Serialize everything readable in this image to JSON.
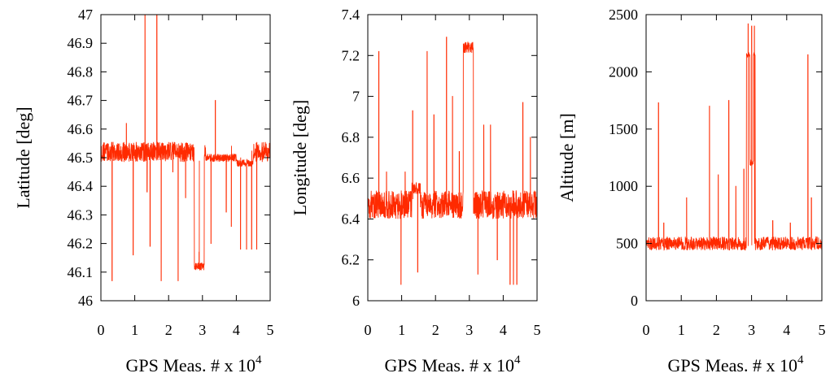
{
  "colors": {
    "series": "#ff2a00",
    "axes": "#000000",
    "background": "#ffffff"
  },
  "chart_data": [
    {
      "type": "line",
      "xlabel": "GPS Meas. # x 10",
      "xlabel_exp": "4",
      "ylabel": "Latitude [deg]",
      "xlim": [
        0,
        5
      ],
      "ylim": [
        46.0,
        47.0
      ],
      "xticks": [
        "0",
        "1",
        "2",
        "3",
        "4",
        "5"
      ],
      "yticks": [
        "46",
        "46.1",
        "46.2",
        "46.3",
        "46.4",
        "46.5",
        "46.6",
        "46.7",
        "46.8",
        "46.9",
        "47"
      ],
      "grid": false,
      "legend": "none",
      "series": [
        {
          "base": 46.52,
          "noise": 0.035,
          "segments": [
            {
              "x": [
                0.02,
                0.06
              ],
              "y": 46.5
            },
            {
              "x": [
                2.76,
                3.05
              ],
              "y": 46.12
            },
            {
              "x": [
                3.1,
                4.0
              ],
              "y": 46.5
            },
            {
              "x": [
                4.0,
                4.5
              ],
              "y": 46.48
            }
          ],
          "spikes": [
            [
              0.33,
              46.07
            ],
            [
              0.95,
              46.16
            ],
            [
              1.3,
              47.0
            ],
            [
              1.36,
              46.38
            ],
            [
              1.45,
              46.19
            ],
            [
              1.65,
              47.0
            ],
            [
              1.78,
              46.07
            ],
            [
              2.12,
              46.45
            ],
            [
              2.28,
              46.07
            ],
            [
              2.5,
              46.36
            ],
            [
              3.38,
              46.7
            ],
            [
              3.25,
              46.2
            ],
            [
              3.7,
              46.31
            ],
            [
              3.85,
              46.26
            ],
            [
              4.12,
              46.18
            ],
            [
              4.3,
              46.18
            ],
            [
              4.45,
              46.18
            ],
            [
              4.6,
              46.18
            ],
            [
              0.75,
              46.62
            ],
            [
              2.9,
              46.17
            ]
          ]
        }
      ]
    },
    {
      "type": "line",
      "xlabel": "GPS Meas. # x 10",
      "xlabel_exp": "4",
      "ylabel": "Longitude [deg]",
      "xlim": [
        0,
        5
      ],
      "ylim": [
        6.0,
        7.4
      ],
      "xticks": [
        "0",
        "1",
        "2",
        "3",
        "4",
        "5"
      ],
      "yticks": [
        "6",
        "6.2",
        "6.4",
        "6.6",
        "6.8",
        "7",
        "7.2",
        "7.4"
      ],
      "grid": false,
      "legend": "none",
      "series": [
        {
          "base": 6.47,
          "noise": 0.07,
          "segments": [
            {
              "x": [
                2.82,
                3.12
              ],
              "y": 7.24
            },
            {
              "x": [
                1.3,
                1.55
              ],
              "y": 6.55
            }
          ],
          "spikes": [
            [
              0.32,
              7.22
            ],
            [
              0.98,
              6.08
            ],
            [
              1.32,
              6.93
            ],
            [
              1.47,
              6.14
            ],
            [
              1.75,
              7.22
            ],
            [
              1.95,
              6.91
            ],
            [
              2.32,
              7.29
            ],
            [
              2.5,
              7.0
            ],
            [
              2.7,
              6.73
            ],
            [
              3.25,
              6.13
            ],
            [
              3.42,
              6.86
            ],
            [
              3.62,
              6.86
            ],
            [
              3.82,
              6.2
            ],
            [
              4.2,
              6.08
            ],
            [
              4.3,
              6.08
            ],
            [
              4.4,
              6.08
            ],
            [
              4.58,
              6.97
            ],
            [
              4.8,
              6.8
            ],
            [
              1.1,
              6.63
            ],
            [
              0.55,
              6.63
            ]
          ]
        }
      ]
    },
    {
      "type": "line",
      "xlabel": "GPS Meas. # x 10",
      "xlabel_exp": "4",
      "ylabel": "Altitude [m]",
      "xlim": [
        0,
        5
      ],
      "ylim": [
        0,
        2500
      ],
      "xticks": [
        "0",
        "1",
        "2",
        "3",
        "4",
        "5"
      ],
      "yticks": [
        "0",
        "500",
        "1000",
        "1500",
        "2000",
        "2500"
      ],
      "grid": false,
      "legend": "none",
      "series": [
        {
          "base": 500,
          "noise": 60,
          "segments": [
            {
              "x": [
                2.85,
                3.1
              ],
              "y": 2150
            },
            {
              "x": [
                2.95,
                3.05
              ],
              "y": 1200
            }
          ],
          "spikes": [
            [
              0.35,
              1730
            ],
            [
              1.15,
              900
            ],
            [
              1.8,
              1700
            ],
            [
              2.05,
              1100
            ],
            [
              2.35,
              1750
            ],
            [
              2.55,
              1000
            ],
            [
              2.78,
              1150
            ],
            [
              2.9,
              2420
            ],
            [
              3.0,
              2400
            ],
            [
              3.08,
              2400
            ],
            [
              3.6,
              700
            ],
            [
              4.1,
              680
            ],
            [
              4.6,
              2150
            ],
            [
              4.7,
              900
            ],
            [
              0.5,
              680
            ]
          ]
        }
      ]
    }
  ]
}
